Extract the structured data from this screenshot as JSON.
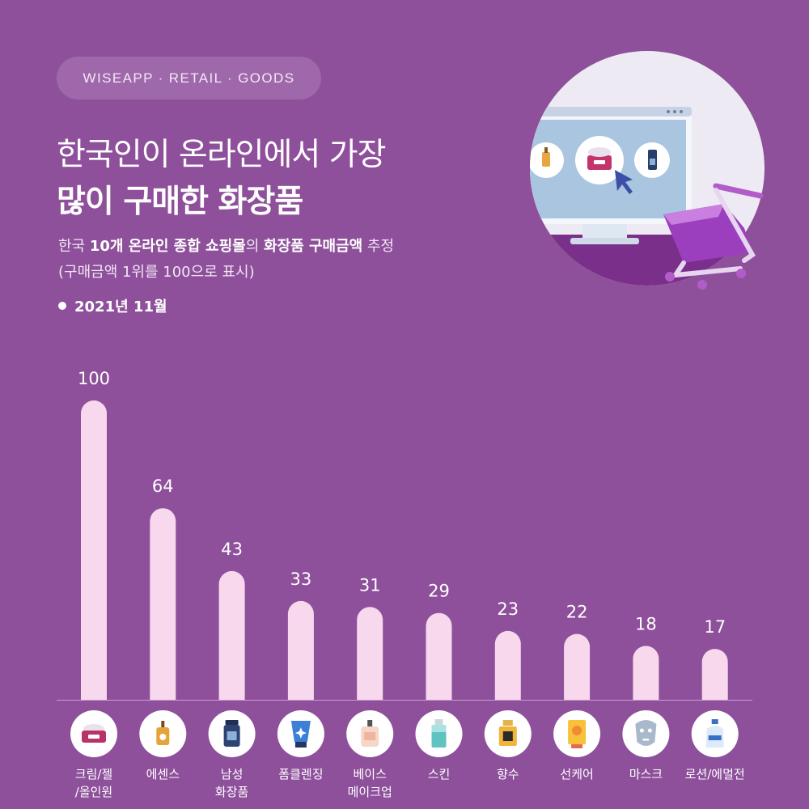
{
  "header": {
    "pill": "WISEAPP · RETAIL · GOODS",
    "title_line1": "한국인이 온라인에서 가장",
    "title_line2": "많이 구매한 화장품",
    "subtitle_pre": "한국 ",
    "subtitle_bold1": "10개 온라인 종합 쇼핑몰",
    "subtitle_mid": "의 ",
    "subtitle_bold2": "화장품 구매금액",
    "subtitle_post": " 추정",
    "note": "(구매금액 1위를 100으로 표시)",
    "date": "2021년 11월"
  },
  "colors": {
    "background": "#8e509b",
    "bar": "#f7d8ec",
    "axis": "#c89ad0",
    "icon_circle": "#ffffff"
  },
  "chart_data": {
    "type": "bar",
    "categories": [
      "크림/젤/올인원",
      "에센스",
      "남성 화장품",
      "폼클렌징",
      "베이스 메이크업",
      "스킨",
      "향수",
      "선케어",
      "마스크",
      "로션/에멀전"
    ],
    "category_lines": [
      [
        "크림/젤",
        "/올인원"
      ],
      [
        "에센스"
      ],
      [
        "남성",
        "화장품"
      ],
      [
        "폼클렌징"
      ],
      [
        "베이스",
        "메이크업"
      ],
      [
        "스킨"
      ],
      [
        "향수"
      ],
      [
        "선케어"
      ],
      [
        "마스크"
      ],
      [
        "로션/에멀전"
      ]
    ],
    "values": [
      100,
      64,
      43,
      33,
      31,
      29,
      23,
      22,
      18,
      17
    ],
    "value_labels": [
      "100",
      "64",
      "43",
      "33",
      "31",
      "29",
      "23",
      "22",
      "18",
      "17"
    ],
    "icons": [
      "cream-jar-icon",
      "essence-bottle-icon",
      "men-skincare-bottle-icon",
      "foam-cleansing-tube-icon",
      "base-makeup-bottle-icon",
      "skin-toner-bottle-icon",
      "perfume-bottle-icon",
      "suncare-tube-icon",
      "sheet-mask-icon",
      "lotion-bottle-icon"
    ],
    "ylim": [
      0,
      100
    ],
    "grid": false,
    "legend": "none"
  }
}
